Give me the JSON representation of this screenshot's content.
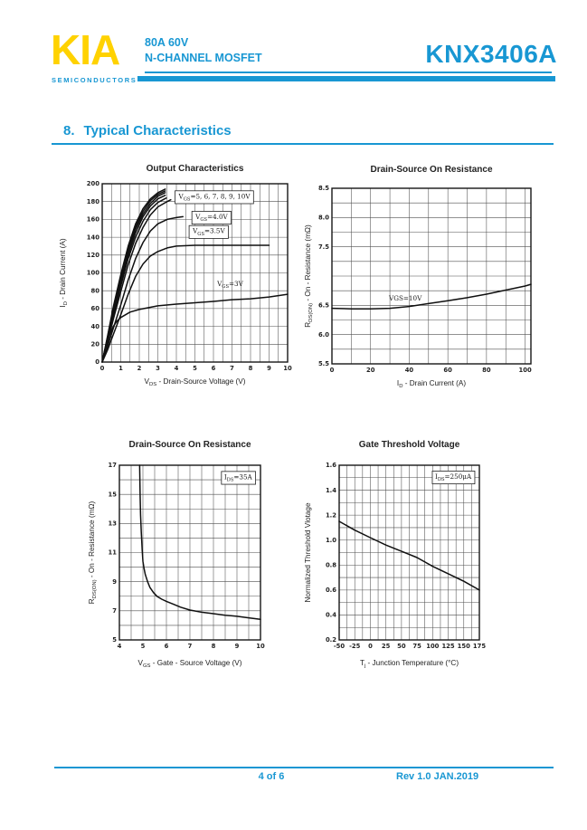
{
  "page": {
    "header": {
      "logo_text": "KIA",
      "logo_subtext": "SEMICONDUCTORS",
      "rating_line1": "80A 60V",
      "rating_line2": "N-CHANNEL MOSFET",
      "part_number": "KNX3406A"
    },
    "section_heading": {
      "number": "8.",
      "title": "Typical Characteristics"
    },
    "footer": {
      "page_indicator": "4 of 6",
      "revision": "Rev 1.0 JAN.2019"
    },
    "colors": {
      "accent_blue": "#1897d3",
      "logo_yellow": "#ffd200",
      "chart_ink": "#1a1a1a"
    }
  },
  "chart_data": [
    {
      "id": "output-characteristics",
      "type": "line",
      "title": "Output Characteristics",
      "xlabel_parts": [
        [
          "V",
          0
        ],
        [
          "DS",
          1
        ],
        [
          " - Drain-Source Voltage (V)",
          0
        ]
      ],
      "ylabel_parts": [
        [
          "I",
          0
        ],
        [
          "D",
          1
        ],
        [
          " - Drain Current (A)",
          0
        ]
      ],
      "xlim": [
        0,
        10
      ],
      "ylim": [
        0,
        200
      ],
      "x_minor": 0.5,
      "y_minor": 20,
      "grid": true,
      "xticks": [
        [
          0,
          "0"
        ],
        [
          1,
          "1"
        ],
        [
          2,
          "2"
        ],
        [
          3,
          "3"
        ],
        [
          4,
          "4"
        ],
        [
          5,
          "5"
        ],
        [
          6,
          "6"
        ],
        [
          7,
          "7"
        ],
        [
          8,
          "8"
        ],
        [
          9,
          "9"
        ],
        [
          10,
          "10"
        ]
      ],
      "yticks": [
        [
          0,
          "0"
        ],
        [
          20,
          "20"
        ],
        [
          40,
          "40"
        ],
        [
          60,
          "60"
        ],
        [
          80,
          "80"
        ],
        [
          100,
          "100"
        ],
        [
          120,
          "120"
        ],
        [
          140,
          "140"
        ],
        [
          160,
          "160"
        ],
        [
          180,
          "180"
        ],
        [
          200,
          "200"
        ]
      ],
      "series": [
        {
          "name": "VGS=10V",
          "points": [
            [
              0,
              0
            ],
            [
              0.3,
              30
            ],
            [
              0.6,
              62
            ],
            [
              1,
              98
            ],
            [
              1.4,
              130
            ],
            [
              1.8,
              155
            ],
            [
              2.2,
              172
            ],
            [
              2.6,
              183
            ],
            [
              3,
              190
            ],
            [
              3.4,
              194
            ]
          ]
        },
        {
          "name": "VGS=9V",
          "points": [
            [
              0,
              0
            ],
            [
              0.3,
              29
            ],
            [
              0.6,
              60
            ],
            [
              1,
              95
            ],
            [
              1.4,
              127
            ],
            [
              1.8,
              152
            ],
            [
              2.2,
              169
            ],
            [
              2.6,
              181
            ],
            [
              3,
              188
            ],
            [
              3.4,
              192
            ]
          ]
        },
        {
          "name": "VGS=8V",
          "points": [
            [
              0,
              0
            ],
            [
              0.3,
              28
            ],
            [
              0.6,
              58
            ],
            [
              1,
              92
            ],
            [
              1.4,
              124
            ],
            [
              1.8,
              149
            ],
            [
              2.2,
              166
            ],
            [
              2.6,
              178
            ],
            [
              3,
              186
            ],
            [
              3.4,
              190
            ]
          ]
        },
        {
          "name": "VGS=7V",
          "points": [
            [
              0,
              0
            ],
            [
              0.3,
              27
            ],
            [
              0.6,
              55
            ],
            [
              1,
              89
            ],
            [
              1.4,
              120
            ],
            [
              1.8,
              145
            ],
            [
              2.2,
              163
            ],
            [
              2.6,
              175
            ],
            [
              3,
              183
            ],
            [
              3.4,
              187
            ]
          ]
        },
        {
          "name": "VGS=6V",
          "points": [
            [
              0,
              0
            ],
            [
              0.3,
              25
            ],
            [
              0.6,
              52
            ],
            [
              1,
              85
            ],
            [
              1.4,
              116
            ],
            [
              1.8,
              140
            ],
            [
              2.2,
              158
            ],
            [
              2.6,
              171
            ],
            [
              3,
              179
            ],
            [
              3.45,
              184
            ]
          ]
        },
        {
          "name": "VGS=5V",
          "points": [
            [
              0,
              0
            ],
            [
              0.3,
              23
            ],
            [
              0.6,
              48
            ],
            [
              1,
              79
            ],
            [
              1.4,
              109
            ],
            [
              1.8,
              133
            ],
            [
              2.2,
              151
            ],
            [
              2.6,
              165
            ],
            [
              3,
              174
            ],
            [
              3.5,
              180
            ],
            [
              3.7,
              182
            ]
          ]
        },
        {
          "name": "VGS=4.0V",
          "points": [
            [
              0,
              0
            ],
            [
              0.3,
              18
            ],
            [
              0.6,
              38
            ],
            [
              1,
              64
            ],
            [
              1.4,
              92
            ],
            [
              1.8,
              116
            ],
            [
              2.2,
              134
            ],
            [
              2.6,
              147
            ],
            [
              3,
              155
            ],
            [
              3.5,
              160
            ],
            [
              4,
              162
            ],
            [
              4.35,
              163
            ]
          ]
        },
        {
          "name": "VGS=3.5V",
          "points": [
            [
              0,
              0
            ],
            [
              0.3,
              14
            ],
            [
              0.6,
              31
            ],
            [
              1,
              53
            ],
            [
              1.4,
              76
            ],
            [
              1.8,
              96
            ],
            [
              2.2,
              110
            ],
            [
              2.6,
              119
            ],
            [
              3,
              124
            ],
            [
              3.5,
              128
            ],
            [
              4,
              130
            ],
            [
              5,
              131
            ],
            [
              6,
              131
            ],
            [
              7,
              131
            ],
            [
              8,
              131
            ],
            [
              9,
              131
            ]
          ]
        },
        {
          "name": "VGS=3V",
          "points": [
            [
              0,
              0
            ],
            [
              0.2,
              15
            ],
            [
              0.4,
              30
            ],
            [
              0.6,
              40
            ],
            [
              0.8,
              46
            ],
            [
              1,
              50
            ],
            [
              1.5,
              56
            ],
            [
              2,
              59
            ],
            [
              2.5,
              61
            ],
            [
              3,
              63
            ],
            [
              4,
              65
            ],
            [
              5,
              66.5
            ],
            [
              6,
              68
            ],
            [
              7,
              70
            ],
            [
              8,
              71
            ],
            [
              9,
              73
            ],
            [
              10,
              76
            ]
          ]
        }
      ],
      "annotations": [
        {
          "parts": [
            [
              "V",
              0
            ],
            [
              "GS",
              1
            ],
            [
              "=5, 6, 7, 8, 9, 10V",
              0
            ]
          ],
          "x": 6.05,
          "y": 186,
          "boxed": true
        },
        {
          "parts": [
            [
              "V",
              0
            ],
            [
              "GS",
              1
            ],
            [
              "=4.0V",
              0
            ]
          ],
          "x": 5.9,
          "y": 163,
          "boxed": true
        },
        {
          "parts": [
            [
              "V",
              0
            ],
            [
              "GS",
              1
            ],
            [
              "=3.5V",
              0
            ]
          ],
          "x": 5.75,
          "y": 147,
          "boxed": true
        },
        {
          "parts": [
            [
              "V",
              0
            ],
            [
              "GS",
              1
            ],
            [
              "=3V",
              0
            ]
          ],
          "x": 6.9,
          "y": 88,
          "boxed": false
        }
      ]
    },
    {
      "id": "rdson-vs-id",
      "type": "line",
      "title": "Drain-Source On Resistance",
      "xlabel_parts": [
        [
          "I",
          0
        ],
        [
          "D",
          1
        ],
        [
          " - Drain Current (A)",
          0
        ]
      ],
      "ylabel_parts": [
        [
          "R",
          0
        ],
        [
          "DS(ON)",
          1
        ],
        [
          " - On - Resistance (mΩ)",
          0
        ]
      ],
      "xlim": [
        0,
        103
      ],
      "ylim": [
        5.5,
        8.5
      ],
      "x_minor": 10,
      "y_minor": 0.25,
      "grid": true,
      "xticks": [
        [
          0,
          "0"
        ],
        [
          20,
          "20"
        ],
        [
          40,
          "40"
        ],
        [
          60,
          "60"
        ],
        [
          80,
          "80"
        ],
        [
          100,
          "100"
        ]
      ],
      "yticks": [
        [
          8.5,
          "8.5"
        ],
        [
          8.0,
          "8.0"
        ],
        [
          7.5,
          "7.5"
        ],
        [
          6.5,
          "6.5"
        ],
        [
          6.0,
          "6.0"
        ],
        [
          5.5,
          "5.5"
        ]
      ],
      "series": [
        {
          "name": "VGS=10V",
          "points": [
            [
              0,
              6.45
            ],
            [
              10,
              6.44
            ],
            [
              20,
              6.44
            ],
            [
              30,
              6.45
            ],
            [
              40,
              6.48
            ],
            [
              50,
              6.53
            ],
            [
              60,
              6.58
            ],
            [
              70,
              6.63
            ],
            [
              80,
              6.69
            ],
            [
              90,
              6.76
            ],
            [
              100,
              6.83
            ],
            [
              103,
              6.86
            ]
          ]
        }
      ],
      "annotations": [
        {
          "parts": [
            [
              "VGS=10V",
              0
            ]
          ],
          "x": 38,
          "y": 6.62,
          "boxed": false
        }
      ]
    },
    {
      "id": "rdson-vs-vgs",
      "type": "line",
      "title": "Drain-Source On Resistance",
      "xlabel_parts": [
        [
          "V",
          0
        ],
        [
          "GS",
          1
        ],
        [
          " - Gate - Source Voltage (V)",
          0
        ]
      ],
      "ylabel_parts": [
        [
          "R",
          0
        ],
        [
          "DS(ON)",
          1
        ],
        [
          " - On - Resistance (mΩ)",
          0
        ]
      ],
      "xlim": [
        4,
        10
      ],
      "ylim": [
        5,
        17
      ],
      "x_minor": 0.5,
      "y_minor": 1,
      "grid": true,
      "xticks": [
        [
          4,
          "4"
        ],
        [
          5,
          "5"
        ],
        [
          6,
          "6"
        ],
        [
          7,
          "7"
        ],
        [
          8,
          "8"
        ],
        [
          9,
          "9"
        ],
        [
          10,
          "10"
        ]
      ],
      "yticks": [
        [
          5,
          "5"
        ],
        [
          7,
          "7"
        ],
        [
          9,
          "9"
        ],
        [
          11,
          "11"
        ],
        [
          13,
          "13"
        ],
        [
          15,
          "15"
        ],
        [
          17,
          "17"
        ]
      ],
      "series": [
        {
          "name": "IDS=35A",
          "points": [
            [
              4.86,
              17
            ],
            [
              4.88,
              15
            ],
            [
              4.9,
              13.6
            ],
            [
              4.93,
              12.4
            ],
            [
              4.97,
              11.2
            ],
            [
              5.0,
              10.4
            ],
            [
              5.05,
              9.9
            ],
            [
              5.1,
              9.5
            ],
            [
              5.2,
              9.0
            ],
            [
              5.3,
              8.6
            ],
            [
              5.45,
              8.25
            ],
            [
              5.6,
              8.0
            ],
            [
              5.8,
              7.8
            ],
            [
              6.0,
              7.65
            ],
            [
              6.3,
              7.45
            ],
            [
              6.6,
              7.25
            ],
            [
              7.0,
              7.05
            ],
            [
              7.5,
              6.9
            ],
            [
              8.0,
              6.8
            ],
            [
              8.5,
              6.7
            ],
            [
              9.0,
              6.62
            ],
            [
              9.5,
              6.52
            ],
            [
              10,
              6.42
            ]
          ]
        }
      ],
      "annotations": [
        {
          "parts": [
            [
              "I",
              0
            ],
            [
              "DS",
              1
            ],
            [
              "=35A",
              0
            ]
          ],
          "x": 9.05,
          "y": 16.2,
          "boxed": true
        }
      ]
    },
    {
      "id": "gate-threshold-voltage",
      "type": "line",
      "title": "Gate Threshold Voltage",
      "xlabel_parts": [
        [
          "T",
          0
        ],
        [
          "j",
          1
        ],
        [
          " - Junction Temperature (°C)",
          0
        ]
      ],
      "ylabel_parts": [
        [
          "Normalized Threshold Vlotage",
          0
        ]
      ],
      "xlim": [
        -50,
        175
      ],
      "ylim": [
        0.2,
        1.6
      ],
      "x_minor": 12.5,
      "y_minor": 0.1,
      "grid": true,
      "xticks": [
        [
          -50,
          "-50"
        ],
        [
          -25,
          "-25"
        ],
        [
          0,
          "0"
        ],
        [
          25,
          "25"
        ],
        [
          50,
          "50"
        ],
        [
          75,
          "75"
        ],
        [
          100,
          "100"
        ],
        [
          125,
          "125"
        ],
        [
          150,
          "150"
        ],
        [
          175,
          "175"
        ]
      ],
      "yticks": [
        [
          0.2,
          "0.2"
        ],
        [
          0.4,
          "0.4"
        ],
        [
          0.6,
          "0.6"
        ],
        [
          0.8,
          "0.8"
        ],
        [
          1.0,
          "1.0"
        ],
        [
          1.2,
          "1.2"
        ],
        [
          1.4,
          "1.4"
        ],
        [
          1.6,
          "1.6"
        ]
      ],
      "series": [
        {
          "name": "IDS=250uA",
          "points": [
            [
              -50,
              1.15
            ],
            [
              -25,
              1.08
            ],
            [
              0,
              1.02
            ],
            [
              25,
              0.96
            ],
            [
              50,
              0.91
            ],
            [
              75,
              0.86
            ],
            [
              100,
              0.79
            ],
            [
              125,
              0.73
            ],
            [
              150,
              0.67
            ],
            [
              175,
              0.6
            ]
          ]
        }
      ],
      "annotations": [
        {
          "parts": [
            [
              "I",
              0
            ],
            [
              "DS",
              1
            ],
            [
              "=250μA",
              0
            ]
          ],
          "x": 133,
          "y": 1.51,
          "boxed": true
        }
      ]
    }
  ]
}
